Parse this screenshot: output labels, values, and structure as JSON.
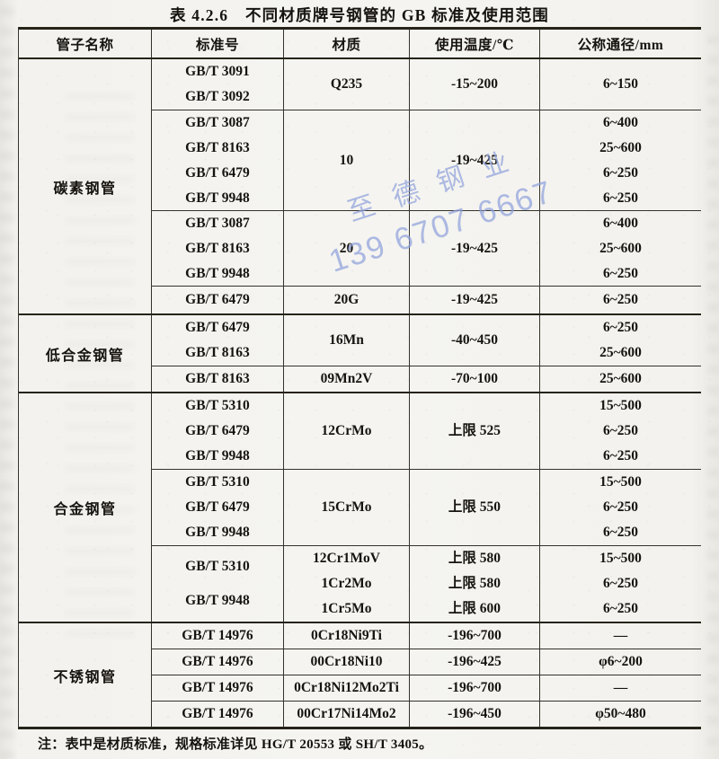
{
  "title": "表 4.2.6　不同材质牌号钢管的 GB 标准及使用范围",
  "note": "注：表中是材质标准，规格标准详见 HG/T 20553 或 SH/T 3405。",
  "watermark": {
    "line1": "至德钢业",
    "line2": "139 6707 6667",
    "color": "#8fa2dc"
  },
  "table": {
    "headers": [
      "管子名称",
      "标准号",
      "材质",
      "使用温度/℃",
      "公称通径/mm"
    ],
    "sections": [
      {
        "name": "碳素钢管",
        "rows": [
          {
            "standards": [
              "GB/T 3091",
              "GB/T 3092"
            ],
            "materials": [
              "Q235"
            ],
            "temps": [
              "-15~200"
            ],
            "diameters": [
              "6~150"
            ]
          },
          {
            "standards": [
              "GB/T 3087",
              "GB/T 8163",
              "GB/T 6479",
              "GB/T 9948"
            ],
            "materials": [
              "10"
            ],
            "temps": [
              "-19~425"
            ],
            "diameters": [
              "6~400",
              "25~600",
              "6~250",
              "6~250"
            ]
          },
          {
            "standards": [
              "GB/T 3087",
              "GB/T 8163",
              "GB/T 9948"
            ],
            "materials": [
              "20"
            ],
            "temps": [
              "-19~425"
            ],
            "diameters": [
              "6~400",
              "25~600",
              "6~250"
            ]
          },
          {
            "standards": [
              "GB/T 6479"
            ],
            "materials": [
              "20G"
            ],
            "temps": [
              "-19~425"
            ],
            "diameters": [
              "6~250"
            ]
          }
        ]
      },
      {
        "name": "低合金钢管",
        "rows": [
          {
            "standards": [
              "GB/T 6479",
              "GB/T 8163"
            ],
            "materials": [
              "16Mn"
            ],
            "temps": [
              "-40~450"
            ],
            "diameters": [
              "6~250",
              "25~600"
            ]
          },
          {
            "standards": [
              "GB/T 8163"
            ],
            "materials": [
              "09Mn2V"
            ],
            "temps": [
              "-70~100"
            ],
            "diameters": [
              "25~600"
            ]
          }
        ]
      },
      {
        "name": "合金钢管",
        "rows": [
          {
            "standards": [
              "GB/T 5310",
              "GB/T 6479",
              "GB/T 9948"
            ],
            "materials": [
              "12CrMo"
            ],
            "temps": [
              "上限 525"
            ],
            "diameters": [
              "15~500",
              "6~250",
              "6~250"
            ]
          },
          {
            "standards": [
              "GB/T 5310",
              "GB/T 6479",
              "GB/T 9948"
            ],
            "materials": [
              "15CrMo"
            ],
            "temps": [
              "上限 550"
            ],
            "diameters": [
              "15~500",
              "6~250",
              "6~250"
            ]
          },
          {
            "standards": [
              "GB/T 5310",
              "GB/T 9948"
            ],
            "materials": [
              "12Cr1MoV",
              "1Cr2Mo",
              "1Cr5Mo"
            ],
            "temps": [
              "上限 580",
              "上限 580",
              "上限 600"
            ],
            "diameters": [
              "15~500",
              "6~250",
              "6~250"
            ]
          }
        ]
      },
      {
        "name": "不锈钢管",
        "rows": [
          {
            "standards": [
              "GB/T 14976"
            ],
            "materials": [
              "0Cr18Ni9Ti"
            ],
            "temps": [
              "-196~700"
            ],
            "diameters": [
              "—"
            ]
          },
          {
            "standards": [
              "GB/T 14976"
            ],
            "materials": [
              "00Cr18Ni10"
            ],
            "temps": [
              "-196~425"
            ],
            "diameters": [
              "φ6~200"
            ]
          },
          {
            "standards": [
              "GB/T 14976"
            ],
            "materials": [
              "0Cr18Ni12Mo2Ti"
            ],
            "temps": [
              "-196~700"
            ],
            "diameters": [
              "—"
            ]
          },
          {
            "standards": [
              "GB/T 14976"
            ],
            "materials": [
              "00Cr17Ni14Mo2"
            ],
            "temps": [
              "-196~450"
            ],
            "diameters": [
              "φ50~480"
            ]
          }
        ]
      }
    ]
  }
}
